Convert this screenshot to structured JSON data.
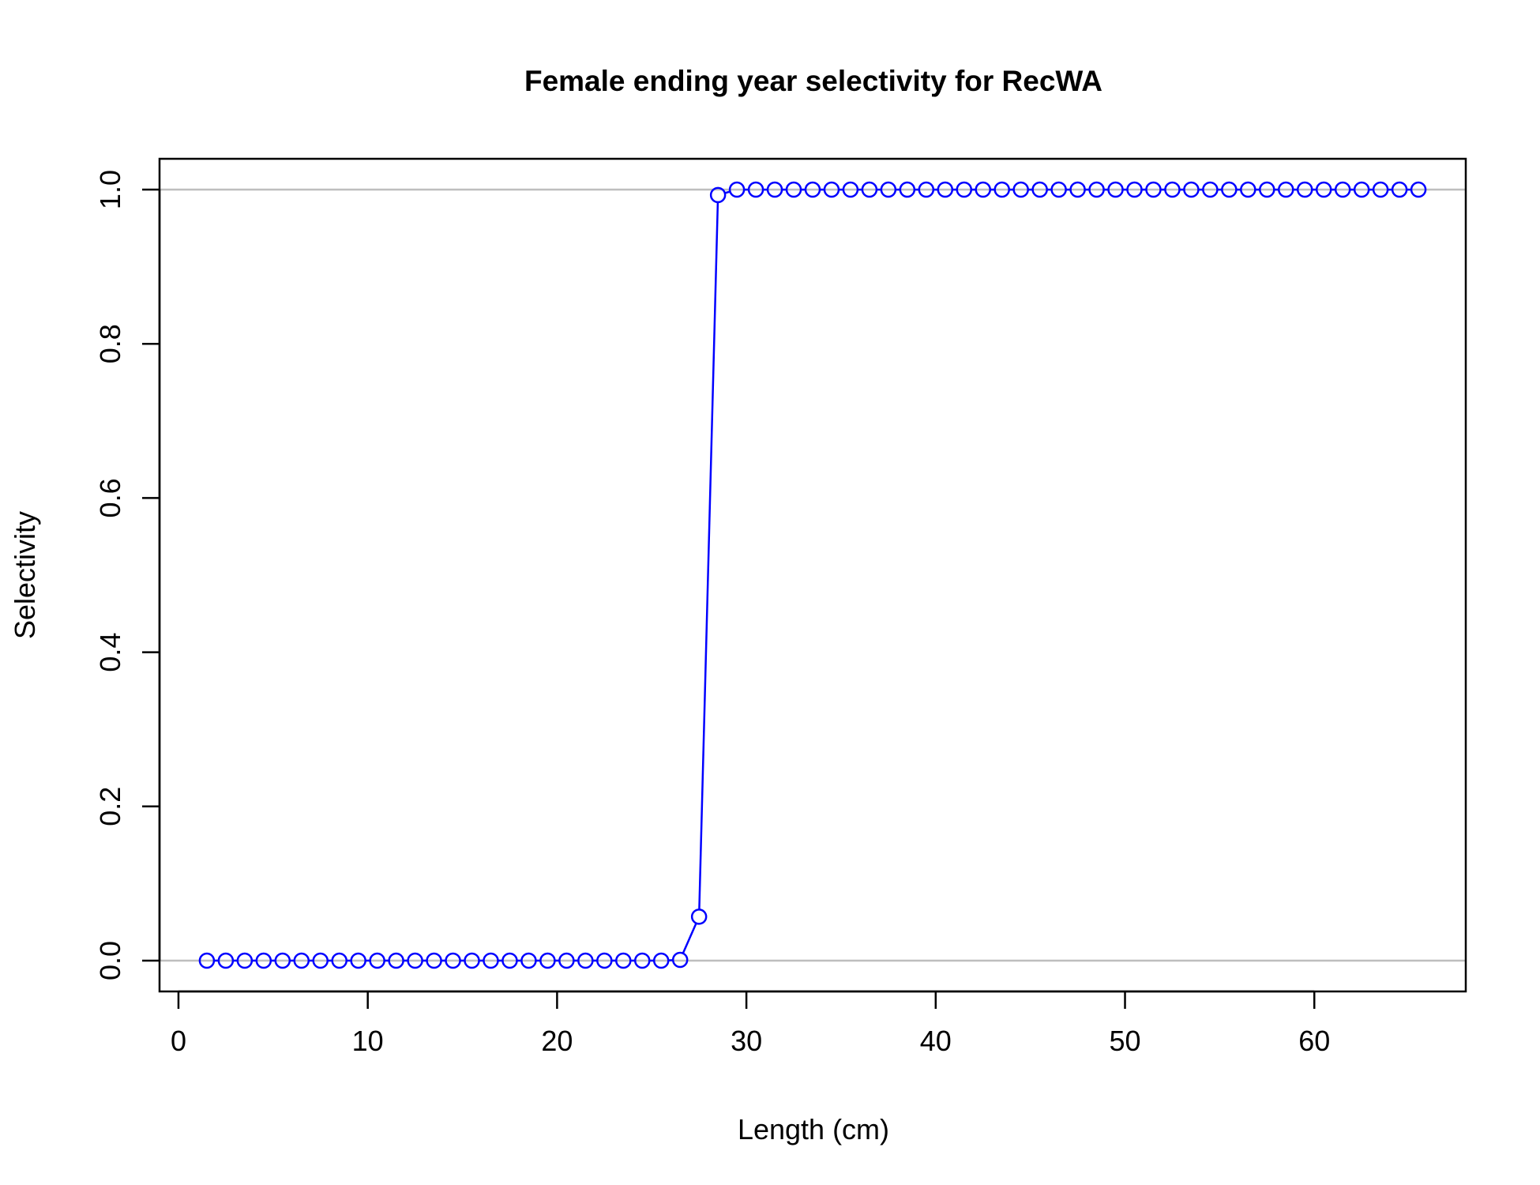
{
  "chart_data": {
    "type": "line",
    "title": "Female ending year selectivity for RecWA",
    "xlabel": "Length (cm)",
    "ylabel": "Selectivity",
    "xlim": [
      -1,
      68
    ],
    "ylim": [
      -0.04,
      1.04
    ],
    "x_ticks": [
      0,
      10,
      20,
      30,
      40,
      50,
      60
    ],
    "y_ticks": [
      0.0,
      0.2,
      0.4,
      0.6,
      0.8,
      1.0
    ],
    "x_tick_labels": [
      "0",
      "10",
      "20",
      "30",
      "40",
      "50",
      "60"
    ],
    "y_tick_labels": [
      "0.0",
      "0.2",
      "0.4",
      "0.6",
      "0.8",
      "1.0"
    ],
    "reference_lines_y": [
      0,
      1
    ],
    "series": [
      {
        "color": "#0000ff",
        "marker": "open-circle",
        "x": [
          1.5,
          2.5,
          3.5,
          4.5,
          5.5,
          6.5,
          7.5,
          8.5,
          9.5,
          10.5,
          11.5,
          12.5,
          13.5,
          14.5,
          15.5,
          16.5,
          17.5,
          18.5,
          19.5,
          20.5,
          21.5,
          22.5,
          23.5,
          24.5,
          25.5,
          26.5,
          27.5,
          28.5,
          29.5,
          30.5,
          31.5,
          32.5,
          33.5,
          34.5,
          35.5,
          36.5,
          37.5,
          38.5,
          39.5,
          40.5,
          41.5,
          42.5,
          43.5,
          44.5,
          45.5,
          46.5,
          47.5,
          48.5,
          49.5,
          50.5,
          51.5,
          52.5,
          53.5,
          54.5,
          55.5,
          56.5,
          57.5,
          58.5,
          59.5,
          60.5,
          61.5,
          62.5,
          63.5,
          64.5,
          65.5
        ],
        "y": [
          0,
          0,
          0,
          0,
          0,
          0,
          0,
          0,
          0,
          0,
          0,
          0,
          0,
          0,
          0,
          0,
          0,
          0,
          0,
          0,
          0,
          0,
          0,
          0,
          0,
          0.001,
          0.057,
          0.993,
          1,
          1,
          1,
          1,
          1,
          1,
          1,
          1,
          1,
          1,
          1,
          1,
          1,
          1,
          1,
          1,
          1,
          1,
          1,
          1,
          1,
          1,
          1,
          1,
          1,
          1,
          1,
          1,
          1,
          1,
          1,
          1,
          1,
          1,
          1,
          1,
          1
        ]
      }
    ],
    "colors": {
      "series": "#0000ff",
      "reference_line": "#bebebe",
      "axis": "#000000"
    }
  }
}
